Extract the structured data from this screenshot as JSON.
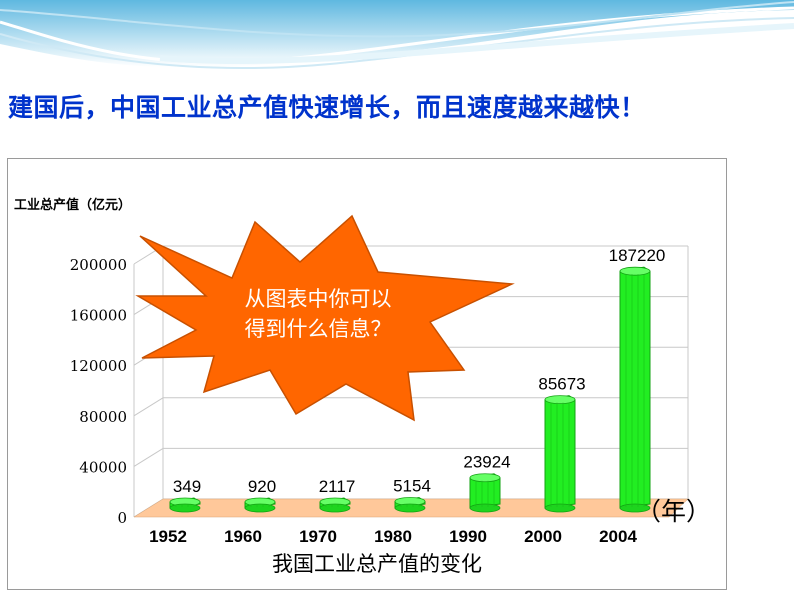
{
  "headline": "建国后，中国工业总产值快速增长，而且速度越来越快！",
  "chart_data": {
    "type": "bar",
    "title": "我国工业总产值的变化",
    "ylabel": "工业总产值（亿元）",
    "xlabel": "（年）",
    "categories": [
      "1952",
      "1960",
      "1970",
      "1980",
      "1990",
      "2000",
      "2004"
    ],
    "values": [
      349,
      920,
      2117,
      5154,
      23924,
      85673,
      187220
    ],
    "value_labels": [
      "349",
      "920",
      "2117",
      "5154",
      "23924",
      "85673",
      "187220"
    ],
    "y_ticks": [
      "0",
      "40000",
      "80000",
      "120000",
      "160000",
      "200000"
    ],
    "ylim": [
      0,
      200000
    ],
    "grid": true,
    "bar_color": "#22ee22",
    "floor_color": "#ffc89a"
  },
  "callout": {
    "line1": "从图表中你可以",
    "line2": "得到什么信息？",
    "fill_color": "#ff6600"
  }
}
